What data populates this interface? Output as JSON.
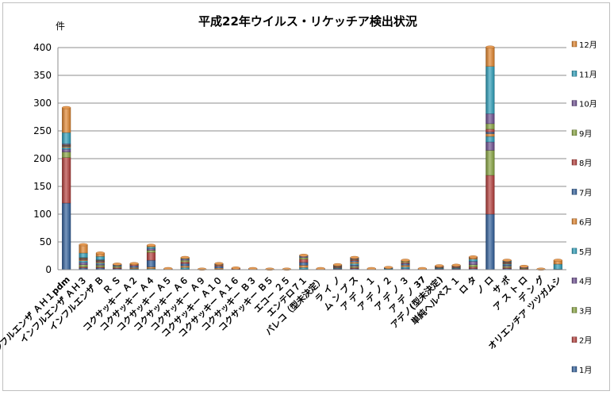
{
  "chart_data": {
    "type": "bar",
    "stacked": true,
    "title": "平成22年ウイルス・リケッチア検出状況",
    "ylabel": "件",
    "ylim": [
      0,
      400
    ],
    "yticks": [
      0,
      50,
      100,
      150,
      200,
      250,
      300,
      350,
      400
    ],
    "grid": true,
    "legend_position": "right",
    "categories": [
      "インフルエンザ ＡＨ１pdm",
      "インフルエンザ ＡＨ３",
      "インフルエンザ Ｂ",
      "Ｒ Ｓ",
      "コクサッキー Ａ２",
      "コクサッキー Ａ４",
      "コクサッキー Ａ５",
      "コクサッキー Ａ６",
      "コクサッキー Ａ９",
      "コクサッキー Ａ１０",
      "コクサッキー Ａ１６",
      "コクサッキー Ｂ３",
      "コクサッキー Ｂ５",
      "エコー ２５",
      "エンテロ７１",
      "パレコ（型未決定）",
      "ラ イ ノ",
      "ム ン プ ス",
      "ア デ ノ １",
      "ア デ ノ ２",
      "ア デ ノ ３",
      "ア デ ノ 37",
      "アデノ(型未決定)",
      "単純ヘルペス １",
      "ロ タ",
      "ノ ロ",
      "サ ポ",
      "ア ス ト ロ",
      "デ ン グ",
      "オリエンチア ツツガムシ"
    ],
    "colors": [
      "#2e5d9a",
      "#b33b38",
      "#86a33e",
      "#6b4c8e",
      "#2a9cb8",
      "#e0822a",
      "#2e5d9a",
      "#b33b38",
      "#86a33e",
      "#6b4c8e",
      "#2a9cb8",
      "#e0822a"
    ],
    "series": [
      {
        "name": "1月",
        "values": [
          120,
          3,
          3,
          2,
          0,
          0,
          0,
          0,
          0,
          0,
          0,
          0,
          0,
          0,
          0,
          0,
          0,
          2,
          0,
          0,
          0,
          0,
          0,
          0,
          2,
          100,
          2,
          1,
          0,
          0
        ]
      },
      {
        "name": "2月",
        "values": [
          82,
          2,
          2,
          2,
          0,
          0,
          0,
          0,
          0,
          0,
          0,
          0,
          0,
          0,
          0,
          0,
          0,
          2,
          0,
          0,
          0,
          0,
          0,
          0,
          3,
          70,
          2,
          1,
          0,
          0
        ]
      },
      {
        "name": "3月",
        "values": [
          10,
          4,
          3,
          2,
          0,
          0,
          0,
          0,
          0,
          0,
          0,
          0,
          0,
          0,
          0,
          0,
          1,
          2,
          0,
          1,
          0,
          0,
          1,
          1,
          4,
          45,
          2,
          1,
          0,
          0
        ]
      },
      {
        "name": "4月",
        "values": [
          5,
          4,
          2,
          1,
          1,
          0,
          0,
          1,
          0,
          0,
          0,
          0,
          0,
          0,
          1,
          0,
          1,
          2,
          0,
          0,
          2,
          0,
          1,
          1,
          6,
          15,
          2,
          2,
          0,
          0
        ]
      },
      {
        "name": "5月",
        "values": [
          3,
          3,
          2,
          1,
          1,
          2,
          0,
          3,
          0,
          1,
          0,
          0,
          0,
          0,
          3,
          0,
          1,
          3,
          1,
          1,
          3,
          0,
          1,
          1,
          4,
          10,
          2,
          1,
          0,
          0
        ]
      },
      {
        "name": "6月",
        "values": [
          2,
          2,
          2,
          0,
          2,
          3,
          0,
          3,
          0,
          2,
          0,
          0,
          0,
          0,
          4,
          0,
          1,
          3,
          1,
          0,
          3,
          1,
          1,
          1,
          2,
          5,
          1,
          0,
          0,
          0
        ]
      },
      {
        "name": "7月",
        "values": [
          1,
          1,
          1,
          0,
          3,
          12,
          0,
          4,
          0,
          3,
          1,
          0,
          0,
          0,
          5,
          1,
          1,
          2,
          0,
          1,
          3,
          1,
          1,
          1,
          1,
          3,
          1,
          0,
          0,
          0
        ]
      },
      {
        "name": "8月",
        "values": [
          1,
          1,
          1,
          0,
          2,
          14,
          0,
          3,
          0,
          2,
          1,
          0,
          0,
          0,
          6,
          1,
          1,
          2,
          0,
          0,
          2,
          0,
          1,
          1,
          1,
          5,
          1,
          0,
          0,
          0
        ]
      },
      {
        "name": "9月",
        "values": [
          1,
          1,
          1,
          0,
          1,
          4,
          1,
          3,
          0,
          1,
          0,
          1,
          0,
          0,
          3,
          0,
          1,
          1,
          0,
          0,
          2,
          0,
          1,
          1,
          0,
          10,
          1,
          0,
          0,
          0
        ]
      },
      {
        "name": "10月",
        "values": [
          2,
          1,
          1,
          1,
          0,
          3,
          1,
          2,
          1,
          1,
          1,
          1,
          1,
          0,
          2,
          0,
          1,
          1,
          0,
          1,
          1,
          0,
          0,
          1,
          0,
          18,
          1,
          0,
          0,
          1
        ]
      },
      {
        "name": "11月",
        "values": [
          20,
          8,
          6,
          0,
          0,
          3,
          0,
          1,
          0,
          1,
          0,
          0,
          0,
          0,
          1,
          0,
          0,
          1,
          0,
          0,
          0,
          0,
          0,
          0,
          0,
          85,
          1,
          0,
          0,
          9
        ]
      },
      {
        "name": "12月",
        "values": [
          45,
          15,
          6,
          1,
          1,
          3,
          0,
          2,
          0,
          0,
          0,
          0,
          0,
          1,
          1,
          0,
          1,
          1,
          0,
          0,
          1,
          0,
          0,
          0,
          0,
          35,
          1,
          0,
          1,
          7
        ]
      }
    ]
  }
}
